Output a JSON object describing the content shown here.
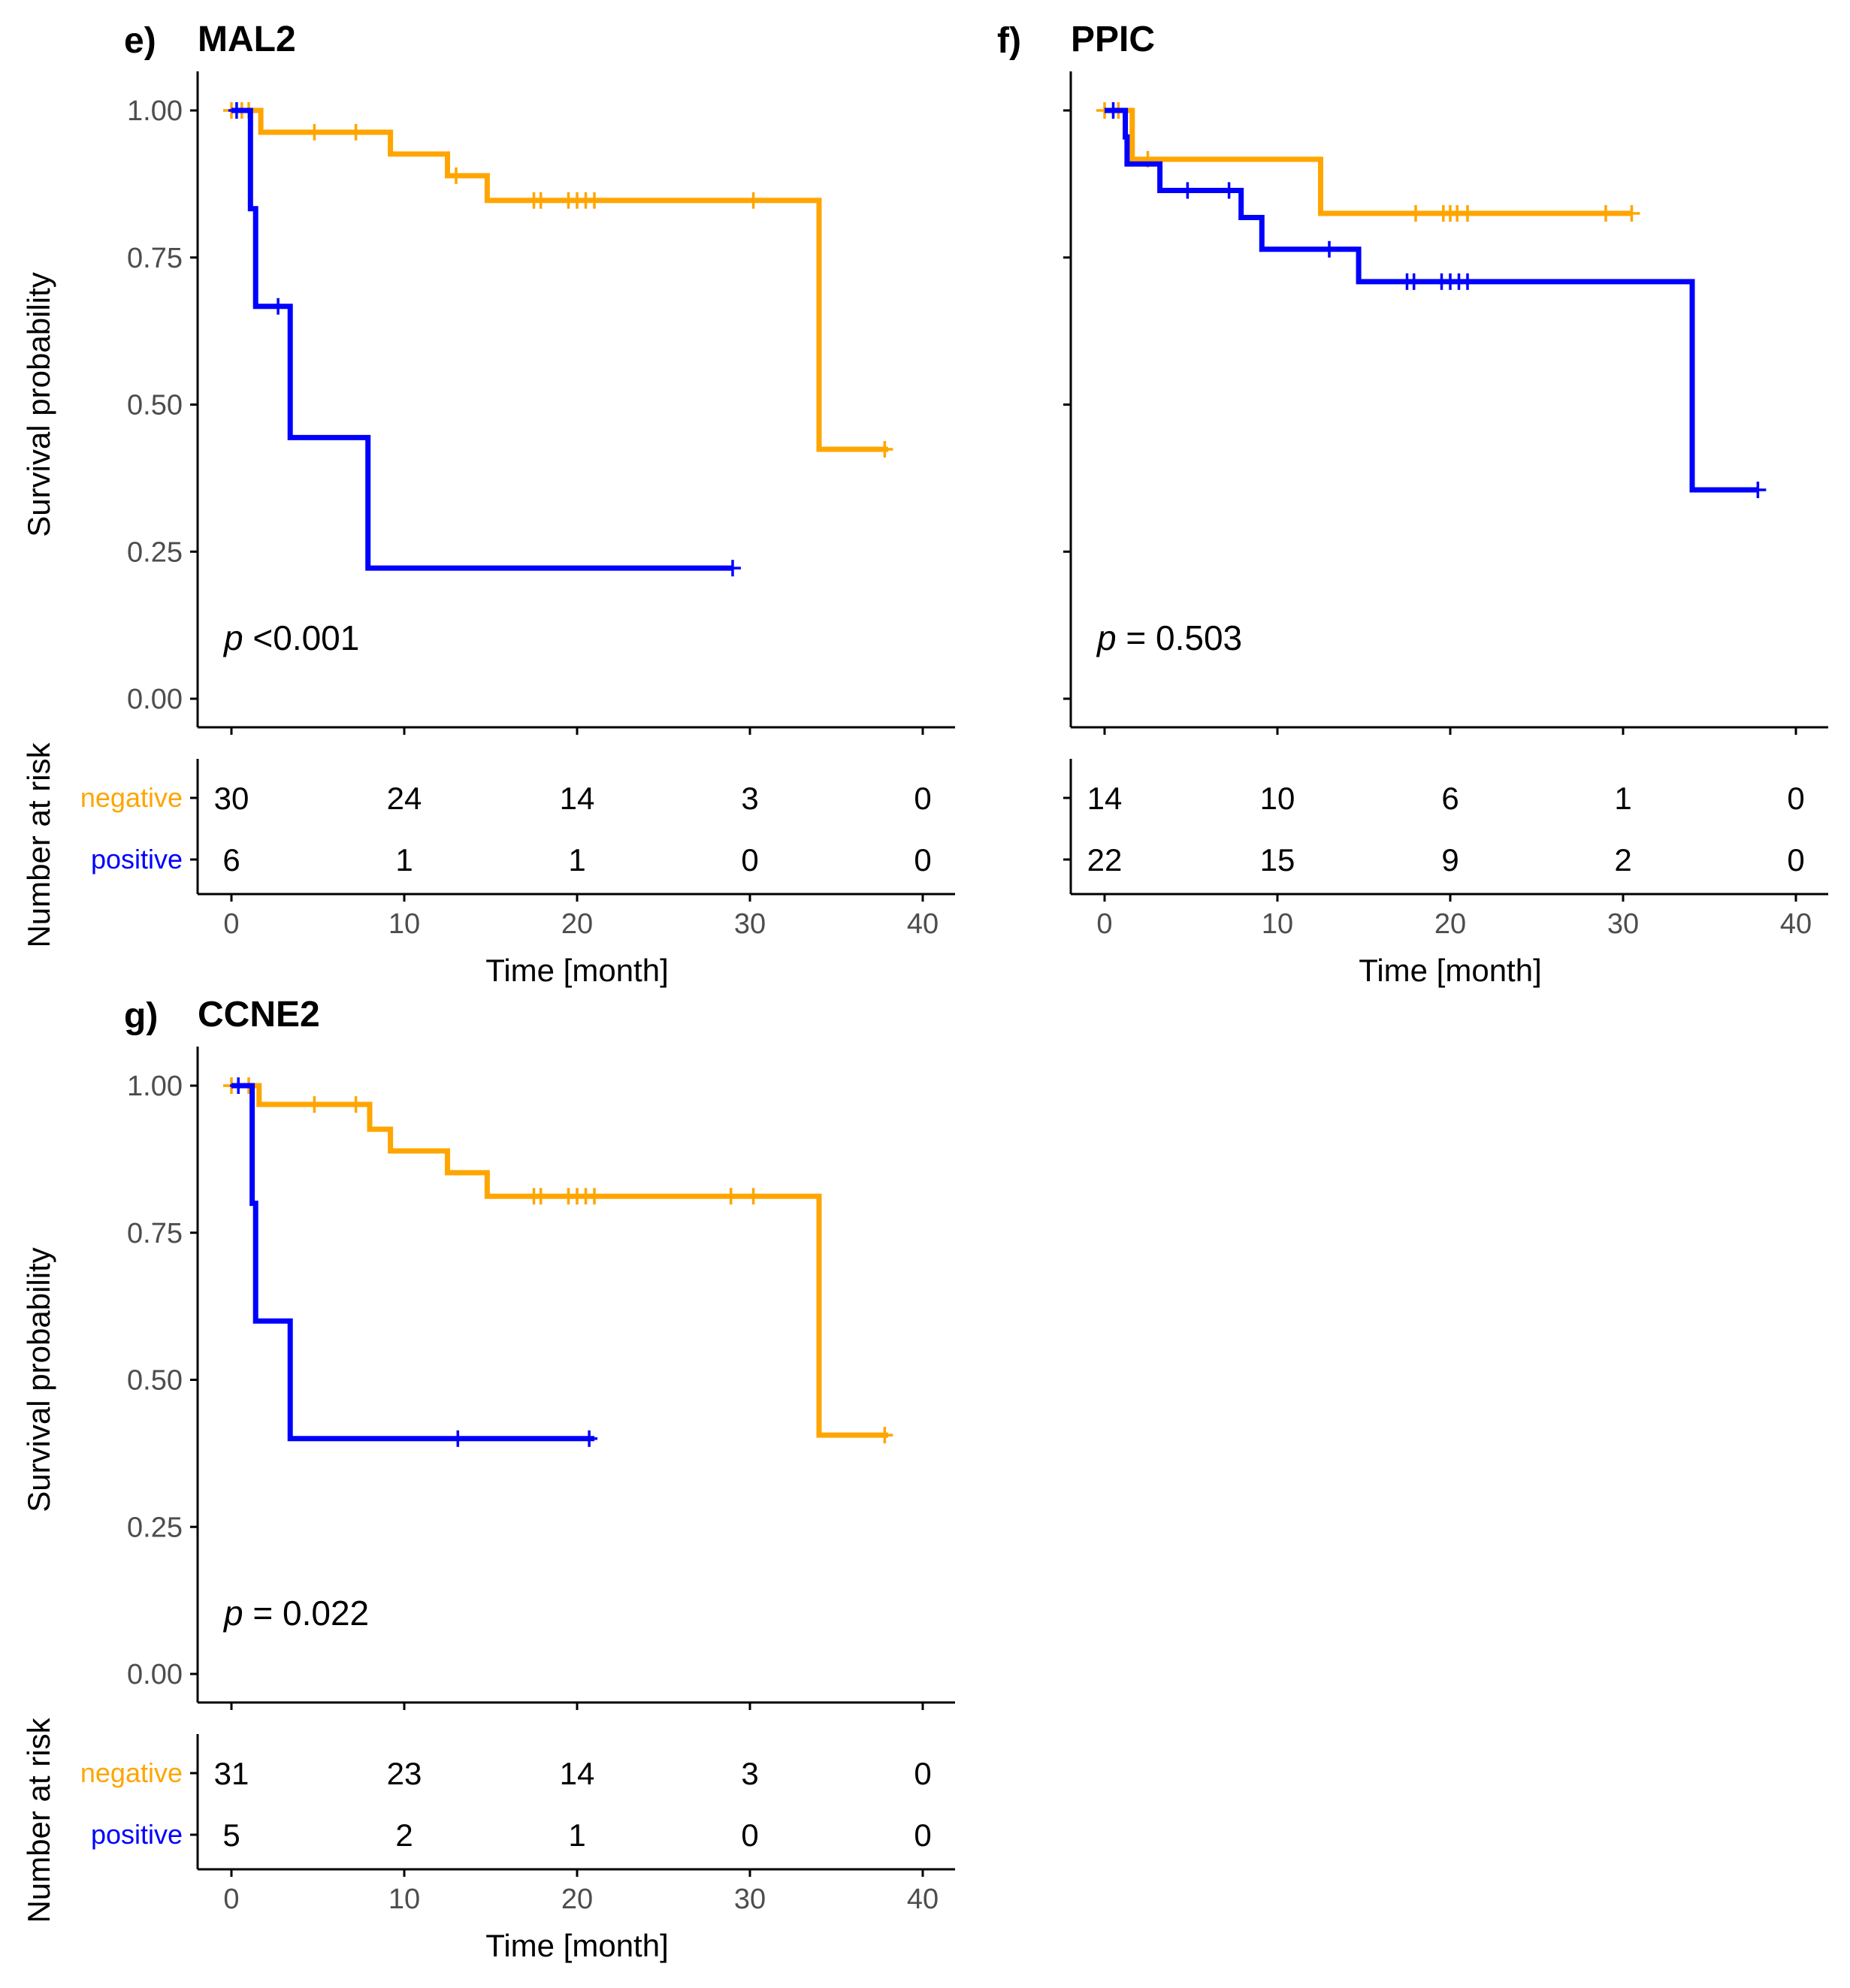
{
  "chart_data": [
    {
      "type": "line",
      "subtype": "kaplan-meier",
      "panel_label": "e)",
      "title": "MAL2",
      "xlabel": "Time [month]",
      "ylabel": "Survival probability",
      "risk_ylabel": "Number at risk",
      "xlim": [
        0,
        40
      ],
      "ylim": [
        0,
        1
      ],
      "x_ticks": [
        "0",
        "10",
        "20",
        "30",
        "40"
      ],
      "y_ticks": [
        "0.00",
        "0.25",
        "0.50",
        "0.75",
        "1.00"
      ],
      "show_y_tick_labels": true,
      "pvalue": {
        "symbol": "p",
        "text": " <0.001"
      },
      "series": [
        {
          "name": "negative",
          "color": "#FFA500",
          "steps": [
            [
              0,
              1.0
            ],
            [
              1.7,
              0.963
            ],
            [
              9.2,
              0.926
            ],
            [
              12.5,
              0.889
            ],
            [
              14.8,
              0.847
            ],
            [
              34.0,
              0.847
            ],
            [
              34.0,
              0.424
            ],
            [
              38,
              0.424
            ]
          ],
          "censor_times": [
            0,
            0.6,
            1.0,
            4.8,
            7.2,
            13.0,
            17.5,
            17.9,
            19.5,
            20.0,
            20.5,
            21.0,
            30.2,
            37.8
          ],
          "at_risk": [
            "30",
            "24",
            "14",
            "3",
            "0"
          ]
        },
        {
          "name": "positive",
          "color": "#0000FF",
          "steps": [
            [
              0,
              1.0
            ],
            [
              1.1,
              0.833
            ],
            [
              1.4,
              0.667
            ],
            [
              3.4,
              0.444
            ],
            [
              7.9,
              0.222
            ],
            [
              29,
              0.222
            ]
          ],
          "censor_times": [
            0.3,
            2.7,
            29.0
          ],
          "at_risk": [
            "6",
            "1",
            "1",
            "0",
            "0"
          ]
        }
      ]
    },
    {
      "type": "line",
      "subtype": "kaplan-meier",
      "panel_label": "f)",
      "title": "PPIC",
      "xlabel": "Time [month]",
      "ylabel": "",
      "risk_ylabel": "",
      "xlim": [
        0,
        40
      ],
      "ylim": [
        0,
        1
      ],
      "x_ticks": [
        "0",
        "10",
        "20",
        "30",
        "40"
      ],
      "y_ticks": [
        "",
        "",
        "",
        "",
        ""
      ],
      "show_y_tick_labels": false,
      "pvalue": {
        "symbol": "p",
        "text": " = 0.503"
      },
      "series": [
        {
          "name": "negative",
          "color": "#FFA500",
          "steps": [
            [
              0,
              1.0
            ],
            [
              1.6,
              0.917
            ],
            [
              12.5,
              0.917
            ],
            [
              12.5,
              0.825
            ],
            [
              30.5,
              0.825
            ]
          ],
          "censor_times": [
            0,
            0.8,
            2.5,
            18.0,
            19.6,
            20.0,
            20.4,
            21.0,
            29.0,
            30.5
          ],
          "at_risk": [
            "14",
            "10",
            "6",
            "1",
            "0"
          ]
        },
        {
          "name": "positive",
          "color": "#0000FF",
          "steps": [
            [
              0,
              1.0
            ],
            [
              1.2,
              0.955
            ],
            [
              1.3,
              0.909
            ],
            [
              3.2,
              0.864
            ],
            [
              7.9,
              0.818
            ],
            [
              9.1,
              0.764
            ],
            [
              14.7,
              0.709
            ],
            [
              34.0,
              0.709
            ],
            [
              34.0,
              0.355
            ],
            [
              37.8,
              0.355
            ]
          ],
          "censor_times": [
            0.5,
            4.8,
            7.2,
            13.0,
            17.5,
            17.9,
            19.5,
            20.0,
            20.5,
            21.0,
            37.8
          ],
          "at_risk": [
            "22",
            "15",
            "9",
            "2",
            "0"
          ]
        }
      ]
    },
    {
      "type": "line",
      "subtype": "kaplan-meier",
      "panel_label": "g)",
      "title": "CCNE2",
      "xlabel": "Time [month]",
      "ylabel": "Survival probability",
      "risk_ylabel": "Number at risk",
      "xlim": [
        0,
        40
      ],
      "ylim": [
        0,
        1
      ],
      "x_ticks": [
        "0",
        "10",
        "20",
        "30",
        "40"
      ],
      "y_ticks": [
        "0.00",
        "0.25",
        "0.50",
        "0.75",
        "1.00"
      ],
      "show_y_tick_labels": true,
      "pvalue": {
        "symbol": "p",
        "text": " = 0.022"
      },
      "series": [
        {
          "name": "negative",
          "color": "#FFA500",
          "steps": [
            [
              0,
              1.0
            ],
            [
              1.6,
              0.968
            ],
            [
              8.0,
              0.926
            ],
            [
              9.2,
              0.889
            ],
            [
              12.5,
              0.852
            ],
            [
              14.8,
              0.812
            ],
            [
              34.0,
              0.812
            ],
            [
              34.0,
              0.406
            ],
            [
              38,
              0.406
            ]
          ],
          "censor_times": [
            0,
            1.0,
            4.8,
            7.2,
            17.5,
            17.9,
            19.5,
            20.0,
            20.5,
            21.0,
            28.9,
            30.2,
            37.8
          ],
          "at_risk": [
            "31",
            "23",
            "14",
            "3",
            "0"
          ]
        },
        {
          "name": "positive",
          "color": "#0000FF",
          "steps": [
            [
              0,
              1.0
            ],
            [
              1.2,
              0.8
            ],
            [
              1.4,
              0.6
            ],
            [
              3.4,
              0.4
            ],
            [
              21,
              0.4
            ]
          ],
          "censor_times": [
            0.4,
            13.1,
            20.7
          ],
          "at_risk": [
            "5",
            "2",
            "1",
            "0",
            "0"
          ]
        }
      ]
    }
  ]
}
